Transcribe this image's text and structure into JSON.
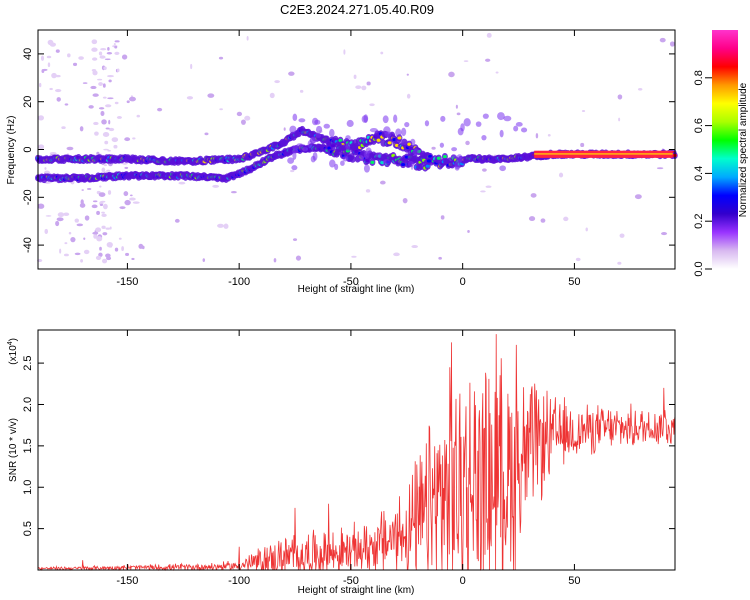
{
  "title": "C2E3.2024.271.05.40.R09",
  "chart_data": [
    {
      "type": "heatmap",
      "name": "spectrogram",
      "xlabel": "Height of straight line (km)",
      "ylabel": "Frequency (Hz)",
      "xlim": [
        -190,
        95
      ],
      "ylim": [
        -50,
        50
      ],
      "xticks": [
        -150,
        -100,
        -50,
        0,
        50
      ],
      "yticks": [
        -40,
        -20,
        0,
        20,
        40
      ],
      "colorbar": {
        "label": "Normalized spectral amplitude",
        "range": [
          0,
          1
        ],
        "ticks": [
          "0.0",
          "0.2",
          "0.4",
          "0.6",
          "0.8"
        ],
        "colors": [
          "#ffffff",
          "#d8b8f0",
          "#9933ff",
          "#3300cc",
          "#0000ff",
          "#00aaff",
          "#00ffcc",
          "#00ff00",
          "#aaff00",
          "#ffff00",
          "#ff9900",
          "#ff0000",
          "#ff0088",
          "#ff33cc"
        ]
      },
      "traces": [
        {
          "name": "upper band",
          "points": [
            [
              -190,
              -4
            ],
            [
              -170,
              -4
            ],
            [
              -150,
              -4
            ],
            [
              -125,
              -5
            ],
            [
              -100,
              -4
            ],
            [
              -90,
              -1
            ],
            [
              -80,
              3
            ],
            [
              -72,
              8
            ],
            [
              -65,
              5
            ],
            [
              -58,
              3
            ],
            [
              -50,
              1
            ],
            [
              -40,
              5
            ],
            [
              -30,
              4
            ],
            [
              -20,
              -2
            ],
            [
              -10,
              -5
            ],
            [
              0,
              -4
            ],
            [
              10,
              -4
            ],
            [
              20,
              -4
            ],
            [
              30,
              -3
            ],
            [
              40,
              -2
            ],
            [
              60,
              -2
            ],
            [
              80,
              -2
            ],
            [
              95,
              -2
            ]
          ]
        },
        {
          "name": "lower band",
          "points": [
            [
              -190,
              -12
            ],
            [
              -170,
              -12
            ],
            [
              -150,
              -11
            ],
            [
              -125,
              -11
            ],
            [
              -105,
              -12
            ],
            [
              -95,
              -8
            ],
            [
              -85,
              -3
            ],
            [
              -75,
              0
            ],
            [
              -65,
              1
            ],
            [
              -55,
              -1
            ],
            [
              -45,
              -3
            ],
            [
              -35,
              -4
            ],
            [
              -25,
              -5
            ],
            [
              -15,
              -6
            ]
          ]
        }
      ],
      "annotations": []
    },
    {
      "type": "line",
      "name": "snr",
      "xlabel": "Height of straight line (km)",
      "ylabel": "SNR (10 * v/v)",
      "scale_label": "(x10",
      "scale_exponent": "4",
      "scale_suffix": ")",
      "xlim": [
        -190,
        95
      ],
      "ylim": [
        0,
        2.9
      ],
      "xticks": [
        -150,
        -100,
        -50,
        0,
        50
      ],
      "yticks": [
        "0.5",
        "1.0",
        "1.5",
        "2.0",
        "2.5"
      ],
      "color": "#ee3333",
      "envelope": {
        "x": [
          -190,
          -170,
          -150,
          -130,
          -110,
          -100,
          -95,
          -90,
          -80,
          -70,
          -60,
          -50,
          -40,
          -30,
          -20,
          -15,
          -10,
          -5,
          0,
          5,
          10,
          15,
          20,
          25,
          30,
          35,
          40,
          45,
          50,
          55,
          60,
          70,
          80,
          90,
          95
        ],
        "base": [
          0.02,
          0.02,
          0.03,
          0.03,
          0.04,
          0.05,
          0.08,
          0.1,
          0.15,
          0.18,
          0.2,
          0.22,
          0.3,
          0.4,
          0.55,
          0.7,
          0.85,
          0.9,
          0.95,
          1.0,
          1.05,
          1.1,
          1.15,
          1.25,
          1.45,
          1.55,
          1.6,
          1.65,
          1.65,
          1.7,
          1.7,
          1.72,
          1.72,
          1.75,
          1.72
        ],
        "amp": [
          0.02,
          0.03,
          0.04,
          0.05,
          0.06,
          0.08,
          0.15,
          0.25,
          0.3,
          0.35,
          0.35,
          0.35,
          0.4,
          0.6,
          0.9,
          1.3,
          1.6,
          1.7,
          1.75,
          1.8,
          1.75,
          1.7,
          1.6,
          1.4,
          1.0,
          0.8,
          0.6,
          0.5,
          0.4,
          0.35,
          0.35,
          0.3,
          0.3,
          0.3,
          0.35
        ]
      },
      "peaks": [
        [
          -170,
          0.12
        ],
        [
          -100,
          0.28
        ],
        [
          -75,
          0.75
        ],
        [
          -60,
          0.8
        ],
        [
          -5,
          2.75
        ],
        [
          15,
          2.85
        ],
        [
          24,
          2.72
        ],
        [
          90,
          2.2
        ]
      ]
    }
  ]
}
